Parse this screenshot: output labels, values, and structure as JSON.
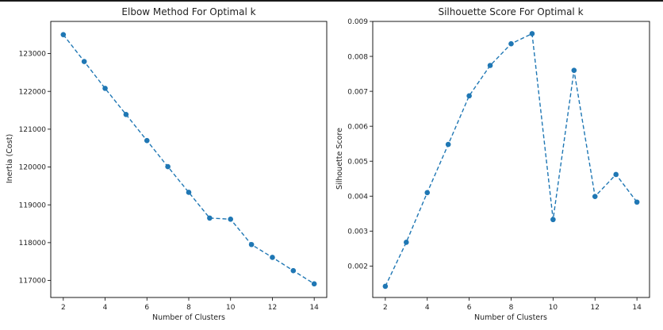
{
  "chart_data": [
    {
      "type": "line",
      "title": "Elbow Method For Optimal k",
      "xlabel": "Number of Clusters",
      "ylabel": "Inertia (Cost)",
      "x": [
        2,
        3,
        4,
        5,
        6,
        7,
        8,
        9,
        10,
        11,
        12,
        13,
        14
      ],
      "series": [
        {
          "values": [
            123500,
            122790,
            122080,
            121390,
            120700,
            120010,
            119330,
            118650,
            118620,
            117950,
            117610,
            117260,
            116910
          ],
          "color": "#1f77b4"
        }
      ],
      "xlim": [
        1.4,
        14.6
      ],
      "ylim": [
        116550,
        123850
      ],
      "xticks": [
        2,
        4,
        6,
        8,
        10,
        12,
        14
      ],
      "yticks": [
        117000,
        118000,
        119000,
        120000,
        121000,
        122000,
        123000
      ],
      "grid": false,
      "marker": "circle",
      "linestyle": "dashed"
    },
    {
      "type": "line",
      "title": "Silhouette Score For Optimal k",
      "xlabel": "Number of Clusters",
      "ylabel": "Silhouette Score",
      "x": [
        2,
        3,
        4,
        5,
        6,
        7,
        8,
        9,
        10,
        11,
        12,
        13,
        14
      ],
      "series": [
        {
          "values": [
            0.00142,
            0.00268,
            0.0041,
            0.00548,
            0.00687,
            0.00774,
            0.00836,
            0.00865,
            0.00333,
            0.0076,
            0.00399,
            0.00462,
            0.00383
          ],
          "color": "#1f77b4"
        }
      ],
      "xlim": [
        1.4,
        14.6
      ],
      "ylim": [
        0.0011,
        0.009
      ],
      "xticks": [
        2,
        4,
        6,
        8,
        10,
        12,
        14
      ],
      "yticks": [
        0.002,
        0.003,
        0.004,
        0.005,
        0.006,
        0.007,
        0.008,
        0.009
      ],
      "ytick_labels": [
        "0.002",
        "0.003",
        "0.004",
        "0.005",
        "0.006",
        "0.007",
        "0.008",
        "0.009"
      ],
      "grid": false,
      "marker": "circle",
      "linestyle": "dashed"
    }
  ]
}
